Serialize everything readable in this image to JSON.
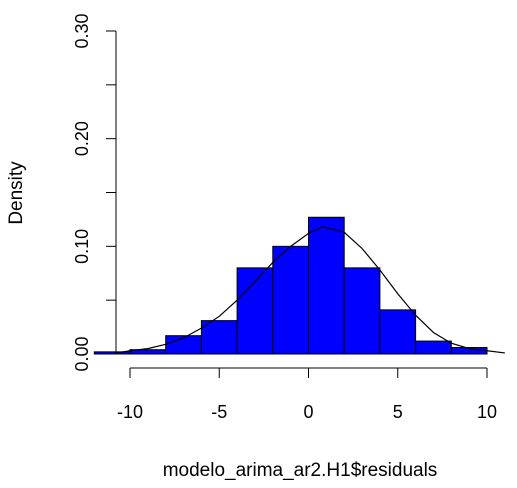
{
  "chart_data": {
    "type": "histogram",
    "title": "",
    "xlabel": "modelo_arima_ar2.H1$residuals",
    "ylabel": "Density",
    "xlim": [
      -10,
      10
    ],
    "ylim": [
      0,
      0.3
    ],
    "x_ticks": [
      -10,
      -5,
      0,
      5,
      10
    ],
    "x_tick_labels": [
      "-10",
      "-5",
      "0",
      "5",
      "10"
    ],
    "y_ticks": [
      0.0,
      0.05,
      0.1,
      0.15,
      0.2,
      0.25,
      0.3
    ],
    "y_tick_labels": [
      "0.00",
      "",
      "0.10",
      "",
      "0.20",
      "",
      "0.30"
    ],
    "bins": [
      {
        "start": -12,
        "end": -10,
        "density": 0.002
      },
      {
        "start": -10,
        "end": -8,
        "density": 0.004
      },
      {
        "start": -8,
        "end": -6,
        "density": 0.017
      },
      {
        "start": -6,
        "end": -4,
        "density": 0.031
      },
      {
        "start": -4,
        "end": -2,
        "density": 0.08
      },
      {
        "start": -2,
        "end": 0,
        "density": 0.1
      },
      {
        "start": 0,
        "end": 2,
        "density": 0.127
      },
      {
        "start": 2,
        "end": 4,
        "density": 0.08
      },
      {
        "start": 4,
        "end": 6,
        "density": 0.041
      },
      {
        "start": 6,
        "end": 8,
        "density": 0.012
      },
      {
        "start": 8,
        "end": 10,
        "density": 0.006
      }
    ],
    "density_curve": {
      "x": [
        -10.8,
        -10,
        -9,
        -8,
        -7,
        -6,
        -5,
        -4,
        -3,
        -2,
        -1,
        0,
        0.8,
        2,
        3,
        4,
        5,
        6,
        7,
        8,
        9,
        10,
        11
      ],
      "y": [
        0.001,
        0.003,
        0.005,
        0.009,
        0.015,
        0.024,
        0.035,
        0.05,
        0.067,
        0.085,
        0.1,
        0.112,
        0.118,
        0.113,
        0.098,
        0.078,
        0.056,
        0.036,
        0.02,
        0.01,
        0.005,
        0.003,
        0.001
      ]
    },
    "bar_fill": "#0000ff",
    "bar_stroke": "#000000",
    "curve_color": "#000000",
    "grid": false,
    "legend": "none"
  }
}
